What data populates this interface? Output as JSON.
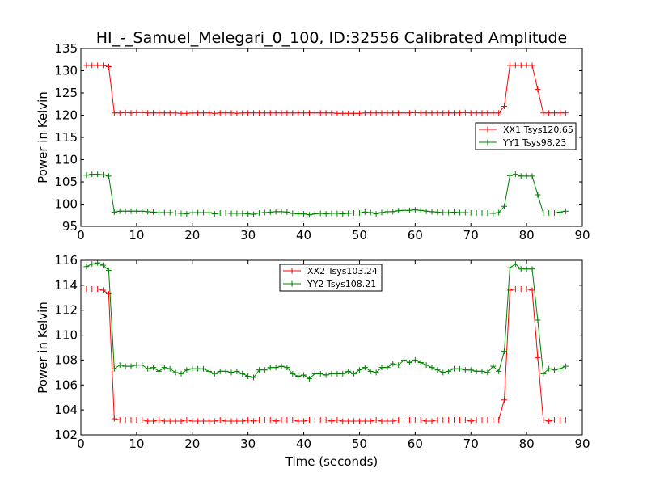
{
  "title": "HI_-_Samuel_Melegari_0_100, ID:32556 Calibrated Amplitude",
  "chart_data": [
    {
      "type": "line",
      "xlabel": "",
      "ylabel": "Power in Kelvin",
      "xlim": [
        0,
        90
      ],
      "ylim": [
        95,
        135
      ],
      "xticks": [
        "0",
        "10",
        "20",
        "30",
        "40",
        "50",
        "60",
        "70",
        "80",
        "90"
      ],
      "yticks": [
        "95",
        "100",
        "105",
        "110",
        "115",
        "120",
        "125",
        "130",
        "135"
      ],
      "grid": false,
      "legend_position": "center-right",
      "series": [
        {
          "name": "XX1 Tsys120.65",
          "color": "#ff0000",
          "x": [
            1,
            2,
            3,
            4,
            5,
            6,
            7,
            8,
            9,
            10,
            11,
            12,
            13,
            14,
            15,
            16,
            17,
            18,
            19,
            20,
            21,
            22,
            23,
            24,
            25,
            26,
            27,
            28,
            29,
            30,
            31,
            32,
            33,
            34,
            35,
            36,
            37,
            38,
            39,
            40,
            41,
            42,
            43,
            44,
            45,
            46,
            47,
            48,
            49,
            50,
            51,
            52,
            53,
            54,
            55,
            56,
            57,
            58,
            59,
            60,
            61,
            62,
            63,
            64,
            65,
            66,
            67,
            68,
            69,
            70,
            71,
            72,
            73,
            74,
            75,
            76,
            77,
            78,
            79,
            80,
            81,
            82,
            83,
            84,
            85,
            86,
            87
          ],
          "y": [
            131.2,
            131.2,
            131.2,
            131.2,
            130.9,
            120.5,
            120.5,
            120.6,
            120.5,
            120.6,
            120.6,
            120.5,
            120.5,
            120.5,
            120.5,
            120.5,
            120.5,
            120.4,
            120.4,
            120.5,
            120.5,
            120.5,
            120.5,
            120.4,
            120.5,
            120.5,
            120.5,
            120.4,
            120.5,
            120.5,
            120.5,
            120.5,
            120.5,
            120.5,
            120.5,
            120.5,
            120.5,
            120.5,
            120.5,
            120.5,
            120.5,
            120.5,
            120.5,
            120.5,
            120.5,
            120.4,
            120.4,
            120.4,
            120.4,
            120.4,
            120.5,
            120.5,
            120.5,
            120.5,
            120.5,
            120.5,
            120.5,
            120.5,
            120.5,
            120.6,
            120.5,
            120.5,
            120.5,
            120.5,
            120.5,
            120.5,
            120.5,
            120.5,
            120.6,
            120.5,
            120.5,
            120.5,
            120.5,
            120.5,
            120.5,
            122.0,
            131.2,
            131.2,
            131.2,
            131.2,
            131.2,
            125.8,
            120.5,
            120.5,
            120.5,
            120.5,
            120.5
          ]
        },
        {
          "name": "YY1 Tsys98.23",
          "color": "#008000",
          "x": [
            1,
            2,
            3,
            4,
            5,
            6,
            7,
            8,
            9,
            10,
            11,
            12,
            13,
            14,
            15,
            16,
            17,
            18,
            19,
            20,
            21,
            22,
            23,
            24,
            25,
            26,
            27,
            28,
            29,
            30,
            31,
            32,
            33,
            34,
            35,
            36,
            37,
            38,
            39,
            40,
            41,
            42,
            43,
            44,
            45,
            46,
            47,
            48,
            49,
            50,
            51,
            52,
            53,
            54,
            55,
            56,
            57,
            58,
            59,
            60,
            61,
            62,
            63,
            64,
            65,
            66,
            67,
            68,
            69,
            70,
            71,
            72,
            73,
            74,
            75,
            76,
            77,
            78,
            79,
            80,
            81,
            82,
            83,
            84,
            85,
            86,
            87
          ],
          "y": [
            106.5,
            106.7,
            106.7,
            106.6,
            106.3,
            98.2,
            98.4,
            98.4,
            98.4,
            98.4,
            98.4,
            98.3,
            98.2,
            98.1,
            98.1,
            98.1,
            98.0,
            97.9,
            97.8,
            98.1,
            98.1,
            98.1,
            98.1,
            97.8,
            98.0,
            98.0,
            97.9,
            97.9,
            97.9,
            97.8,
            97.7,
            98.0,
            98.1,
            98.2,
            98.3,
            98.3,
            98.2,
            97.9,
            97.8,
            97.8,
            97.6,
            97.8,
            97.9,
            97.8,
            97.9,
            97.9,
            97.8,
            97.9,
            98.0,
            98.0,
            98.2,
            98.1,
            97.8,
            98.1,
            98.3,
            98.3,
            98.5,
            98.6,
            98.6,
            98.7,
            98.6,
            98.4,
            98.3,
            98.2,
            98.1,
            98.1,
            98.2,
            98.1,
            98.1,
            98.0,
            98.0,
            98.0,
            98.0,
            97.9,
            98.1,
            99.5,
            106.4,
            106.7,
            106.3,
            106.3,
            106.3,
            102.1,
            98.0,
            98.0,
            98.0,
            98.2,
            98.4
          ]
        }
      ]
    },
    {
      "type": "line",
      "xlabel": "Time (seconds)",
      "ylabel": "Power in Kelvin",
      "xlim": [
        0,
        90
      ],
      "ylim": [
        102,
        116
      ],
      "xticks": [
        "0",
        "10",
        "20",
        "30",
        "40",
        "50",
        "60",
        "70",
        "80",
        "90"
      ],
      "yticks": [
        "102",
        "104",
        "106",
        "108",
        "110",
        "112",
        "114",
        "116"
      ],
      "grid": false,
      "legend_position": "upper-center",
      "series": [
        {
          "name": "XX2 Tsys103.24",
          "color": "#ff0000",
          "x": [
            1,
            2,
            3,
            4,
            5,
            6,
            7,
            8,
            9,
            10,
            11,
            12,
            13,
            14,
            15,
            16,
            17,
            18,
            19,
            20,
            21,
            22,
            23,
            24,
            25,
            26,
            27,
            28,
            29,
            30,
            31,
            32,
            33,
            34,
            35,
            36,
            37,
            38,
            39,
            40,
            41,
            42,
            43,
            44,
            45,
            46,
            47,
            48,
            49,
            50,
            51,
            52,
            53,
            54,
            55,
            56,
            57,
            58,
            59,
            60,
            61,
            62,
            63,
            64,
            65,
            66,
            67,
            68,
            69,
            70,
            71,
            72,
            73,
            74,
            75,
            76,
            77,
            78,
            79,
            80,
            81,
            82,
            83,
            84,
            85,
            86,
            87
          ],
          "y": [
            113.7,
            113.7,
            113.7,
            113.6,
            113.3,
            103.3,
            103.2,
            103.2,
            103.2,
            103.2,
            103.2,
            103.1,
            103.1,
            103.2,
            103.1,
            103.1,
            103.1,
            103.1,
            103.2,
            103.1,
            103.1,
            103.1,
            103.1,
            103.1,
            103.2,
            103.1,
            103.1,
            103.1,
            103.1,
            103.2,
            103.1,
            103.2,
            103.2,
            103.2,
            103.1,
            103.2,
            103.2,
            103.2,
            103.1,
            103.1,
            103.2,
            103.2,
            103.2,
            103.2,
            103.1,
            103.2,
            103.1,
            103.1,
            103.1,
            103.1,
            103.1,
            103.1,
            103.2,
            103.1,
            103.1,
            103.1,
            103.2,
            103.2,
            103.2,
            103.2,
            103.2,
            103.1,
            103.1,
            103.2,
            103.2,
            103.2,
            103.2,
            103.2,
            103.2,
            103.1,
            103.2,
            103.2,
            103.2,
            103.2,
            103.2,
            104.8,
            113.6,
            113.7,
            113.7,
            113.7,
            113.6,
            108.2,
            103.2,
            103.1,
            103.2,
            103.2,
            103.2
          ]
        },
        {
          "name": "YY2 Tsys108.21",
          "color": "#008000",
          "x": [
            1,
            2,
            3,
            4,
            5,
            6,
            7,
            8,
            9,
            10,
            11,
            12,
            13,
            14,
            15,
            16,
            17,
            18,
            19,
            20,
            21,
            22,
            23,
            24,
            25,
            26,
            27,
            28,
            29,
            30,
            31,
            32,
            33,
            34,
            35,
            36,
            37,
            38,
            39,
            40,
            41,
            42,
            43,
            44,
            45,
            46,
            47,
            48,
            49,
            50,
            51,
            52,
            53,
            54,
            55,
            56,
            57,
            58,
            59,
            60,
            61,
            62,
            63,
            64,
            65,
            66,
            67,
            68,
            69,
            70,
            71,
            72,
            73,
            74,
            75,
            76,
            77,
            78,
            79,
            80,
            81,
            82,
            83,
            84,
            85,
            86,
            87
          ],
          "y": [
            115.5,
            115.7,
            115.8,
            115.6,
            115.2,
            107.3,
            107.6,
            107.5,
            107.5,
            107.6,
            107.6,
            107.3,
            107.4,
            107.1,
            107.4,
            107.3,
            107.0,
            106.9,
            107.2,
            107.3,
            107.3,
            107.3,
            107.1,
            106.9,
            107.1,
            107.1,
            107.0,
            107.1,
            106.9,
            106.7,
            106.6,
            107.2,
            107.2,
            107.4,
            107.4,
            107.5,
            107.4,
            106.9,
            106.7,
            106.8,
            106.5,
            106.9,
            106.9,
            106.8,
            106.9,
            106.9,
            106.9,
            107.1,
            106.9,
            107.2,
            107.4,
            107.1,
            107.0,
            107.4,
            107.4,
            107.7,
            107.6,
            108.0,
            107.8,
            108.0,
            107.8,
            107.6,
            107.4,
            107.2,
            107.0,
            107.1,
            107.3,
            107.3,
            107.2,
            107.2,
            107.1,
            107.1,
            107.0,
            107.5,
            107.1,
            108.7,
            115.4,
            115.7,
            115.3,
            115.3,
            115.3,
            111.2,
            106.9,
            107.3,
            107.2,
            107.3,
            107.5
          ]
        }
      ]
    }
  ]
}
